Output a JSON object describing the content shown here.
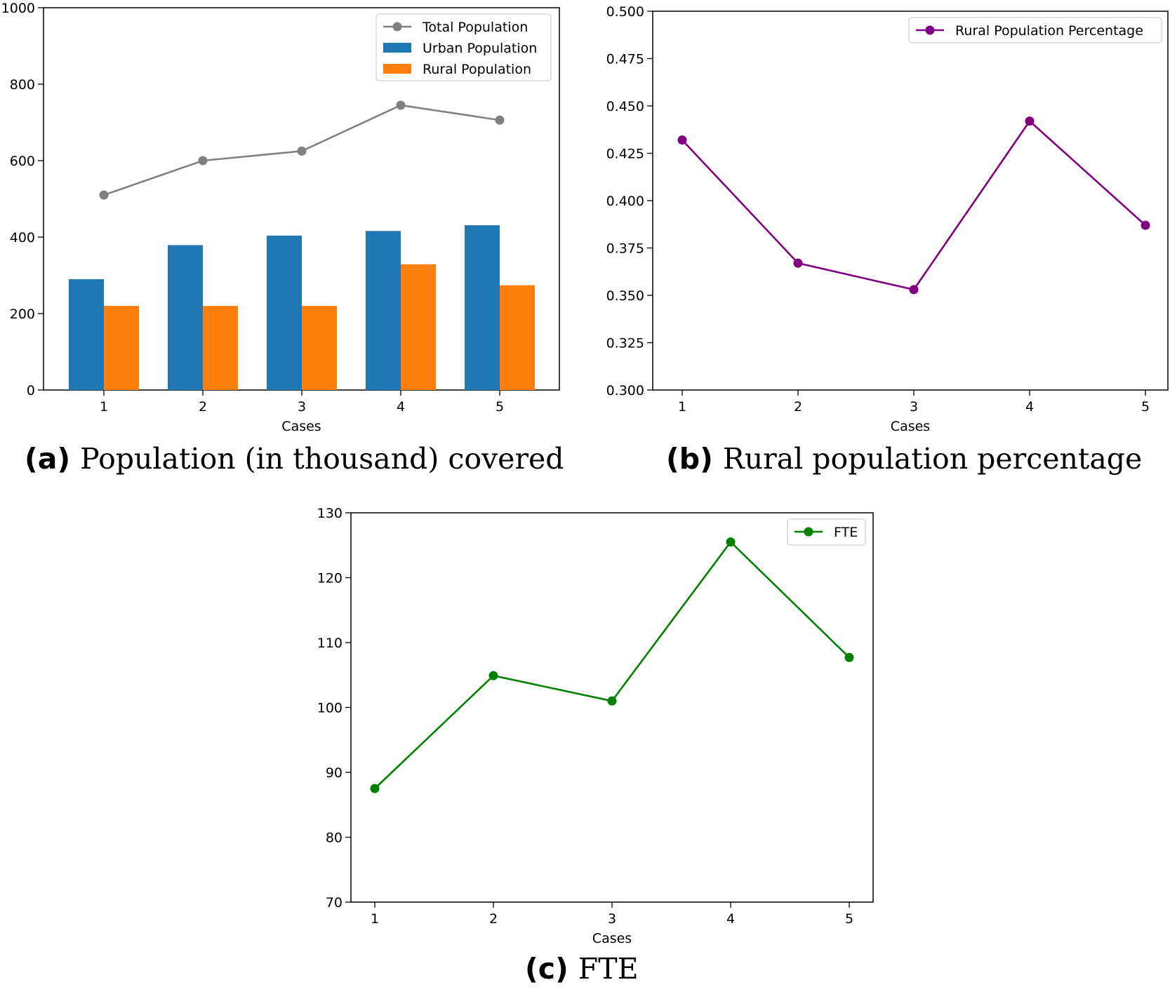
{
  "chart_data": [
    {
      "type": "bar",
      "caption_tag": "(a)",
      "caption_text": "Population (in thousand) covered",
      "xlabel": "Cases",
      "ylabel": "",
      "categories": [
        "1",
        "2",
        "3",
        "4",
        "5"
      ],
      "ylim": [
        0,
        1000
      ],
      "yticks": [
        "0",
        "200",
        "400",
        "600",
        "800",
        "1000"
      ],
      "series": [
        {
          "name": "Total Population",
          "kind": "line",
          "color": "#808080",
          "values": [
            510,
            600,
            625,
            745,
            706
          ]
        },
        {
          "name": "Urban Population",
          "kind": "bar",
          "color": "#1f77b4",
          "values": [
            290,
            379,
            404,
            416,
            431
          ]
        },
        {
          "name": "Rural Population",
          "kind": "bar",
          "color": "#ff7f0e",
          "values": [
            220,
            220,
            220,
            329,
            274
          ]
        }
      ],
      "legend": "top-right",
      "grid": false
    },
    {
      "type": "line",
      "caption_tag": "(b)",
      "caption_text": "Rural population percentage",
      "xlabel": "Cases",
      "ylabel": "",
      "x": [
        "1",
        "2",
        "3",
        "4",
        "5"
      ],
      "ylim": [
        0.3,
        0.5
      ],
      "yticks": [
        "0.300",
        "0.325",
        "0.350",
        "0.375",
        "0.400",
        "0.425",
        "0.450",
        "0.475",
        "0.500"
      ],
      "series": [
        {
          "name": "Rural Population Percentage",
          "color": "#800080",
          "values": [
            0.432,
            0.367,
            0.353,
            0.442,
            0.387
          ]
        }
      ],
      "legend": "top-right",
      "grid": false
    },
    {
      "type": "line",
      "caption_tag": "(c)",
      "caption_text": "FTE",
      "xlabel": "Cases",
      "ylabel": "",
      "x": [
        "1",
        "2",
        "3",
        "4",
        "5"
      ],
      "ylim": [
        70,
        130
      ],
      "yticks": [
        "70",
        "80",
        "90",
        "100",
        "110",
        "120",
        "130"
      ],
      "series": [
        {
          "name": "FTE",
          "color": "#008000",
          "values": [
            87.5,
            104.9,
            101.0,
            125.5,
            107.7
          ]
        }
      ],
      "legend": "top-right",
      "grid": false
    }
  ]
}
